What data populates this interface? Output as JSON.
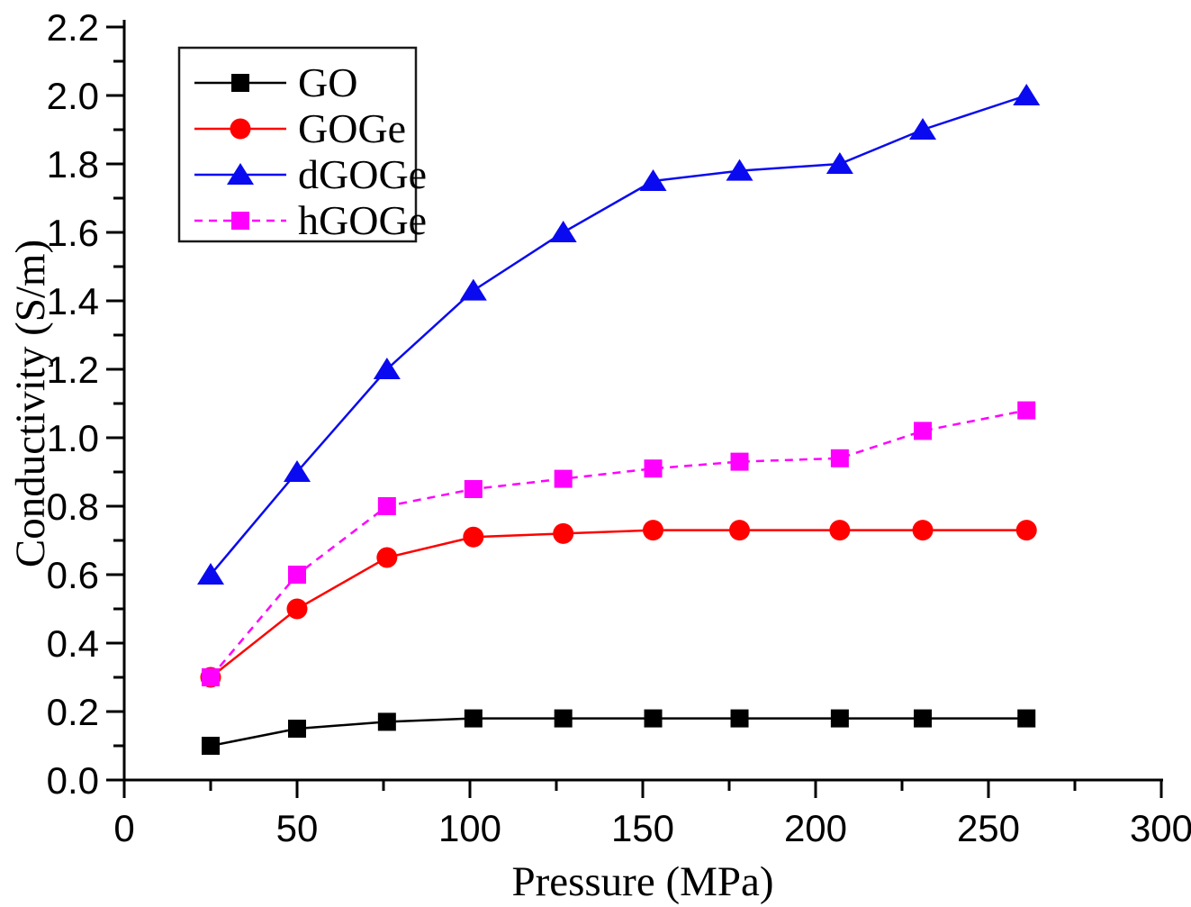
{
  "chart_data": {
    "type": "line",
    "title": "",
    "xlabel": "Pressure (MPa)",
    "ylabel": "Conductivity (S/m)",
    "xlim": [
      0,
      300
    ],
    "ylim": [
      0.0,
      2.2
    ],
    "x_major_ticks": [
      0,
      50,
      100,
      150,
      200,
      250,
      300
    ],
    "x_minor_step": 25,
    "y_major_ticks": [
      0.0,
      0.2,
      0.4,
      0.6,
      0.8,
      1.0,
      1.2,
      1.4,
      1.6,
      1.8,
      2.0,
      2.2
    ],
    "y_minor_step": 0.1,
    "grid": false,
    "legend_position": "top-left",
    "x": [
      25,
      50,
      76,
      101,
      127,
      153,
      178,
      207,
      231,
      261
    ],
    "series": [
      {
        "name": "GO",
        "color": "#000000",
        "marker": "square",
        "line": "solid",
        "values": [
          0.1,
          0.15,
          0.17,
          0.18,
          0.18,
          0.18,
          0.18,
          0.18,
          0.18,
          0.18
        ]
      },
      {
        "name": "GOGe",
        "color": "#ff0000",
        "marker": "circle",
        "line": "solid",
        "values": [
          0.3,
          0.5,
          0.65,
          0.71,
          0.72,
          0.73,
          0.73,
          0.73,
          0.73,
          0.73
        ]
      },
      {
        "name": "dGOGe",
        "color": "#0a0af0",
        "marker": "triangle",
        "line": "solid",
        "values": [
          0.6,
          0.9,
          1.2,
          1.43,
          1.6,
          1.75,
          1.78,
          1.8,
          1.9,
          2.0
        ]
      },
      {
        "name": "hGOGe",
        "color": "#ff00ff",
        "marker": "square",
        "line": "dashed",
        "values": [
          0.3,
          0.6,
          0.8,
          0.85,
          0.88,
          0.91,
          0.93,
          0.94,
          1.02,
          1.08
        ]
      }
    ]
  }
}
